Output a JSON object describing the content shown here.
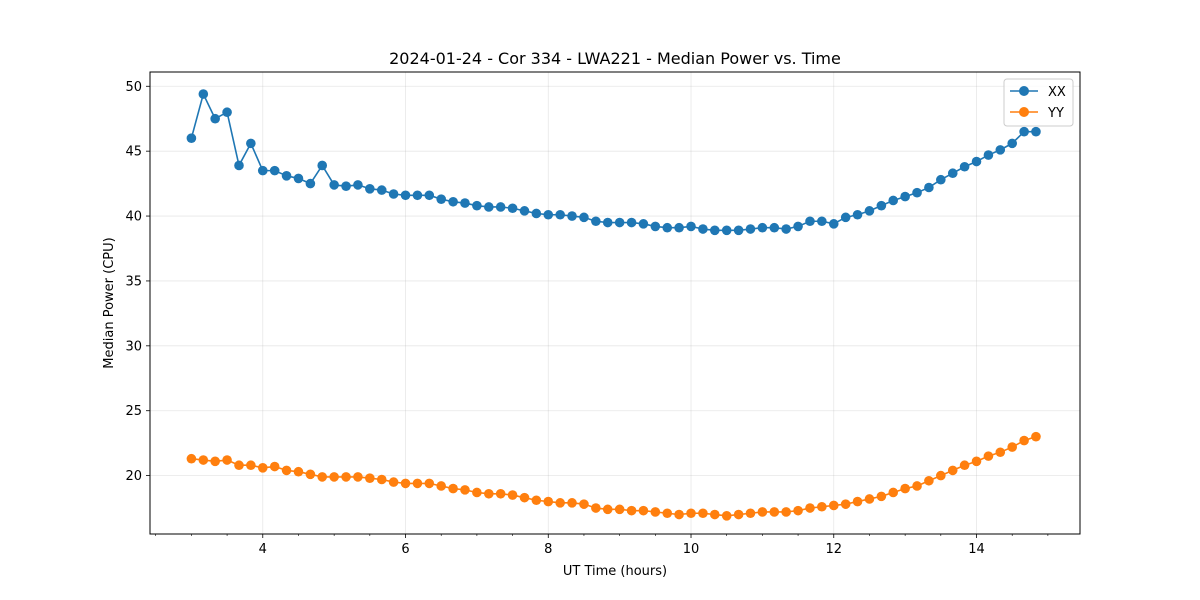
{
  "chart_data": {
    "type": "line",
    "title": "2024-01-24 - Cor 334 - LWA221 - Median Power vs. Time",
    "xlabel": "UT Time (hours)",
    "ylabel": "Median Power (CPU)",
    "xlim": [
      2.42,
      15.45
    ],
    "ylim": [
      15.5,
      51.1
    ],
    "xticks": [
      4,
      6,
      8,
      10,
      12,
      14
    ],
    "xtick_labels": [
      "4",
      "6",
      "8",
      "10",
      "12",
      "14"
    ],
    "yticks": [
      20,
      25,
      30,
      35,
      40,
      45,
      50
    ],
    "ytick_labels": [
      "20",
      "25",
      "30",
      "35",
      "40",
      "45",
      "50"
    ],
    "grid": true,
    "legend_position": "top-right",
    "x": [
      3.0,
      3.167,
      3.333,
      3.5,
      3.667,
      3.833,
      4.0,
      4.167,
      4.333,
      4.5,
      4.667,
      4.833,
      5.0,
      5.167,
      5.333,
      5.5,
      5.667,
      5.833,
      6.0,
      6.167,
      6.333,
      6.5,
      6.667,
      6.833,
      7.0,
      7.167,
      7.333,
      7.5,
      7.667,
      7.833,
      8.0,
      8.167,
      8.333,
      8.5,
      8.667,
      8.833,
      9.0,
      9.167,
      9.333,
      9.5,
      9.667,
      9.833,
      10.0,
      10.167,
      10.333,
      10.5,
      10.667,
      10.833,
      11.0,
      11.167,
      11.333,
      11.5,
      11.667,
      11.833,
      12.0,
      12.167,
      12.333,
      12.5,
      12.667,
      12.833,
      13.0,
      13.167,
      13.333,
      13.5,
      13.667,
      13.833,
      14.0,
      14.167,
      14.333,
      14.5,
      14.667,
      14.833
    ],
    "series": [
      {
        "name": "XX",
        "color": "#1f77b4",
        "values": [
          46.0,
          49.4,
          47.5,
          48.0,
          43.9,
          45.6,
          43.5,
          43.5,
          43.1,
          42.9,
          42.5,
          43.9,
          42.4,
          42.3,
          42.4,
          42.1,
          42.0,
          41.7,
          41.6,
          41.6,
          41.6,
          41.3,
          41.1,
          41.0,
          40.8,
          40.7,
          40.7,
          40.6,
          40.4,
          40.2,
          40.1,
          40.1,
          40.0,
          39.9,
          39.6,
          39.5,
          39.5,
          39.5,
          39.4,
          39.2,
          39.1,
          39.1,
          39.2,
          39.0,
          38.9,
          38.9,
          38.9,
          39.0,
          39.1,
          39.1,
          39.0,
          39.2,
          39.6,
          39.6,
          39.4,
          39.9,
          40.1,
          40.4,
          40.8,
          41.2,
          41.5,
          41.8,
          42.2,
          42.8,
          43.3,
          43.8,
          44.2,
          44.7,
          45.1,
          45.6,
          46.5,
          46.5
        ]
      },
      {
        "name": "YY",
        "color": "#ff7f0e",
        "values": [
          21.3,
          21.2,
          21.1,
          21.2,
          20.8,
          20.8,
          20.6,
          20.7,
          20.4,
          20.3,
          20.1,
          19.9,
          19.9,
          19.9,
          19.9,
          19.8,
          19.7,
          19.5,
          19.4,
          19.4,
          19.4,
          19.2,
          19.0,
          18.9,
          18.7,
          18.6,
          18.6,
          18.5,
          18.3,
          18.1,
          18.0,
          17.9,
          17.9,
          17.8,
          17.5,
          17.4,
          17.4,
          17.3,
          17.3,
          17.2,
          17.1,
          17.0,
          17.1,
          17.1,
          17.0,
          16.9,
          17.0,
          17.1,
          17.2,
          17.2,
          17.2,
          17.3,
          17.5,
          17.6,
          17.7,
          17.8,
          18.0,
          18.2,
          18.4,
          18.7,
          19.0,
          19.2,
          19.6,
          20.0,
          20.4,
          20.8,
          21.1,
          21.5,
          21.8,
          22.2,
          22.7,
          23.0
        ]
      }
    ]
  }
}
